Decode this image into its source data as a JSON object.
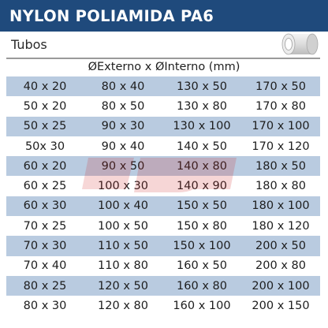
{
  "header": {
    "title": "NYLON POLIAMIDA PA6"
  },
  "section": {
    "title": "Tubos"
  },
  "icons": {
    "product": "tube-icon"
  },
  "dimensions_label": "ØExterno x ØInterno (mm)",
  "colors": {
    "header_bg": "#1f4a7c",
    "row_shade": "#b9cbe0"
  },
  "table": {
    "rows": [
      [
        "40 x 20",
        "80 x 40",
        "130 x 50",
        "170 x 50"
      ],
      [
        "50 x 20",
        "80 x 50",
        "130 x 80",
        "170 x 80"
      ],
      [
        "50 x 25",
        "90 x 30",
        "130 x 100",
        "170 x 100"
      ],
      [
        "50x 30",
        "90 x 40",
        "140 x 50",
        "170 x 120"
      ],
      [
        "60 x 20",
        "90 x 50",
        "140 x 80",
        "180 x 50"
      ],
      [
        "60 x 25",
        "100 x 30",
        "140 x 90",
        "180 x 80"
      ],
      [
        "60 x 30",
        "100 x 40",
        "150 x 50",
        "180 x 100"
      ],
      [
        "70 x 25",
        "100 x 50",
        "150 x 80",
        "180 x 120"
      ],
      [
        "70 x 30",
        "110 x 50",
        "150 x 100",
        "200 x 50"
      ],
      [
        "70 x 40",
        "110 x 80",
        "160 x 50",
        "200 x 80"
      ],
      [
        "80 x 25",
        "120 x 50",
        "160 x 80",
        "200 x 100"
      ],
      [
        "80 x 30",
        "120 x 80",
        "160 x 100",
        "200 x 150"
      ]
    ]
  }
}
